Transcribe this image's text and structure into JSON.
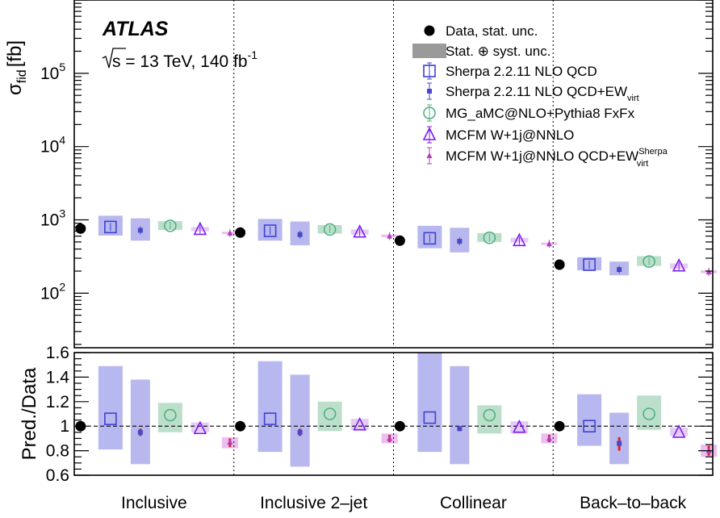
{
  "experiment": "ATLAS",
  "energy_label_pre": "s = 13 TeV, 140 fb",
  "energy_label_exp": "-1",
  "colors": {
    "data": "#000000",
    "sherpa": "#4040d0",
    "sherpa_band": "#b8b8f0",
    "sherpa_ew": "#4848c8",
    "sherpa_ew_band": "#b8b8ee",
    "mg": "#50b080",
    "mg_band": "#bcdfcc",
    "mcfm": "#7d1cf0",
    "mcfm_band": "#e5ccf7",
    "mcfm_ew": "#b040c0",
    "mcfm_ew_band": "#ecbef0",
    "red_marker": "#e02020",
    "syst_band": "#9a9a9a"
  },
  "chart_data": {
    "type": "scatter",
    "categories": [
      "Inclusive",
      "Inclusive 2–jet",
      "Collinear",
      "Back–to–back"
    ],
    "upper": {
      "ylabel": "σ",
      "ylabel_sub": "fid",
      "ylabel_unit": "[fb]",
      "log_scale": true,
      "ylim": [
        18,
        1000000
      ],
      "ticks": [
        {
          "value": 100,
          "base": "10",
          "exp": "2"
        },
        {
          "value": 1000,
          "base": "10",
          "exp": "3"
        },
        {
          "value": 10000,
          "base": "10",
          "exp": "4"
        },
        {
          "value": 100000,
          "base": "10",
          "exp": "5"
        }
      ]
    },
    "lower": {
      "ylabel": "Pred./Data",
      "ylim": [
        0.6,
        1.6
      ],
      "ticks": [
        "0.6",
        "0.8",
        "1",
        "1.2",
        "1.4",
        "1.6"
      ],
      "reference_line": 1.0
    },
    "legend": [
      {
        "label": "Data, stat. unc.",
        "marker": "dot"
      },
      {
        "label": "Stat. ⊕ syst. unc.",
        "marker": "band"
      },
      {
        "label": "Sherpa 2.2.11 NLO QCD",
        "marker": "open-square"
      },
      {
        "label": "Sherpa 2.2.11 NLO QCD+EW",
        "sub": "virt",
        "marker": "small-square"
      },
      {
        "label": "MG_aMC@NLO+Pythia8 FxFx",
        "marker": "open-circle"
      },
      {
        "label": "MCFM W+1j@NNLO",
        "marker": "open-triangle"
      },
      {
        "label": "MCFM W+1j@NNLO QCD+EW",
        "sub": "virt",
        "sup": "Sherpa",
        "marker": "small-triangle"
      }
    ],
    "data": {
      "name": "Data, stat. unc.",
      "values": [
        760,
        670,
        520,
        245
      ]
    },
    "series": [
      {
        "name": "Sherpa 2.2.11 NLO QCD",
        "key": "sherpa",
        "marker": "open-square",
        "values": [
          800,
          710,
          560,
          245
        ],
        "band": [
          [
            610,
            1140
          ],
          [
            520,
            1030
          ],
          [
            410,
            830
          ],
          [
            205,
            310
          ]
        ],
        "ratio": [
          1.06,
          1.06,
          1.07,
          1.0
        ],
        "ratio_band": [
          [
            0.81,
            1.49
          ],
          [
            0.79,
            1.53
          ],
          [
            0.79,
            1.6
          ],
          [
            0.84,
            1.26
          ]
        ]
      },
      {
        "name": "Sherpa 2.2.11 NLO QCD+EW",
        "key": "sherpa_ew",
        "marker": "small-square",
        "values": [
          720,
          630,
          510,
          210
        ],
        "band": [
          [
            520,
            1050
          ],
          [
            450,
            950
          ],
          [
            360,
            780
          ],
          [
            175,
            270
          ]
        ],
        "ratio": [
          0.95,
          0.95,
          0.98,
          0.86
        ],
        "ratio_band": [
          [
            0.69,
            1.38
          ],
          [
            0.67,
            1.42
          ],
          [
            0.69,
            1.49
          ],
          [
            0.69,
            1.11
          ]
        ],
        "red_ticks": [
          [
            0.92,
            0.98
          ],
          [
            0.92,
            0.98
          ],
          [
            0.96,
            1.0
          ],
          [
            0.8,
            0.91
          ]
        ]
      },
      {
        "name": "MG_aMC@NLO+Pythia8 FxFx",
        "key": "mg",
        "marker": "open-circle",
        "values": [
          830,
          740,
          570,
          270
        ],
        "band": [
          [
            730,
            960
          ],
          [
            650,
            850
          ],
          [
            500,
            660
          ],
          [
            235,
            320
          ]
        ],
        "ratio": [
          1.09,
          1.1,
          1.09,
          1.1
        ],
        "ratio_band": [
          [
            0.95,
            1.19
          ],
          [
            0.96,
            1.2
          ],
          [
            0.94,
            1.17
          ],
          [
            0.97,
            1.25
          ]
        ]
      },
      {
        "name": "MCFM W+1j@NNLO",
        "key": "mcfm",
        "marker": "open-triangle",
        "values": [
          740,
          680,
          520,
          235
        ],
        "band": [
          [
            700,
            800
          ],
          [
            630,
            740
          ],
          [
            490,
            570
          ],
          [
            215,
            255
          ]
        ],
        "ratio": [
          0.98,
          1.01,
          0.99,
          0.95
        ],
        "ratio_band": [
          [
            0.95,
            1.03
          ],
          [
            0.97,
            1.06
          ],
          [
            0.94,
            1.04
          ],
          [
            0.92,
            0.99
          ]
        ]
      },
      {
        "name": "MCFM W+1j@NNLO QCD+EW",
        "key": "mcfm_ew",
        "marker": "small-triangle",
        "values": [
          660,
          600,
          470,
          195
        ],
        "band": [
          [
            640,
            690
          ],
          [
            580,
            630
          ],
          [
            455,
            490
          ],
          [
            188,
            205
          ]
        ],
        "ratio": [
          0.87,
          0.9,
          0.9,
          0.8
        ],
        "ratio_band": [
          [
            0.82,
            0.91
          ],
          [
            0.86,
            0.94
          ],
          [
            0.86,
            0.94
          ],
          [
            0.75,
            0.85
          ]
        ],
        "red_ticks": [
          [
            0.83,
            0.9
          ],
          [
            0.87,
            0.93
          ],
          [
            0.87,
            0.93
          ],
          [
            0.76,
            0.84
          ]
        ]
      }
    ]
  }
}
